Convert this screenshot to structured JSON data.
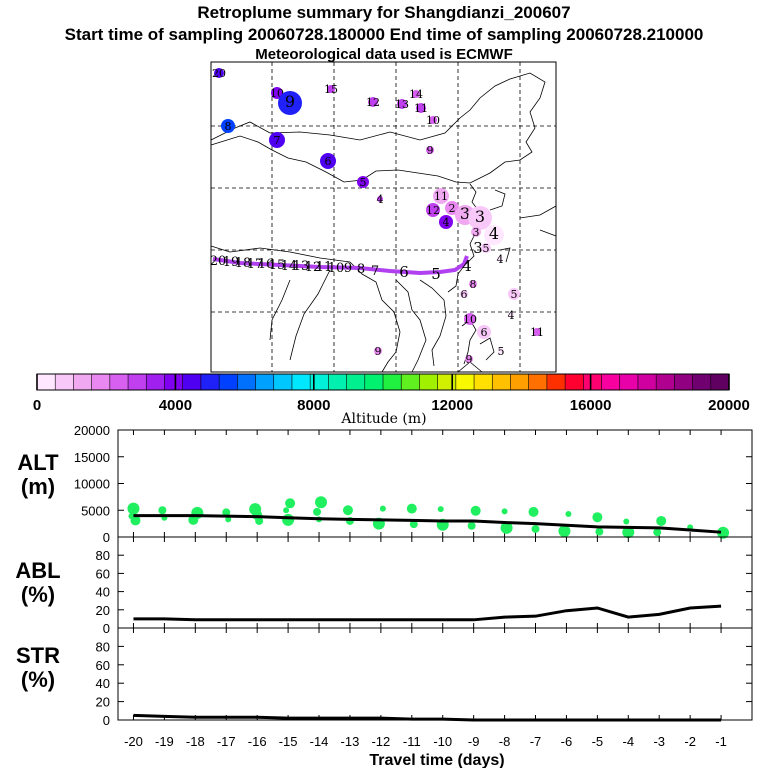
{
  "titles": {
    "line1": "Retroplume summary for Shangdianzi_200607",
    "line2": "Start time of sampling 20060728.180000     End time of sampling 20060728.210000",
    "line3": "Meteorological data used is ECMWF"
  },
  "colorbar": {
    "label": "Altitude (m)",
    "ticks": [
      "0",
      "4000",
      "8000",
      "12000",
      "16000",
      "20000"
    ],
    "min": 0,
    "max": 20000,
    "colors": [
      "#ffe8ff",
      "#f8c8f8",
      "#f0a8f0",
      "#e888f0",
      "#d860f0",
      "#c040f0",
      "#a020f0",
      "#8000f0",
      "#5000f0",
      "#2020f8",
      "#0040ff",
      "#0070ff",
      "#00a0ff",
      "#00c8ff",
      "#00e8ff",
      "#00f0d8",
      "#00f0b0",
      "#00f090",
      "#00f070",
      "#20f040",
      "#60f020",
      "#a0f000",
      "#d0f000",
      "#f8f800",
      "#ffe000",
      "#ffc000",
      "#ffa000",
      "#ff7000",
      "#ff3000",
      "#ff0030",
      "#ff0070",
      "#f800a0",
      "#e800a8",
      "#d000a0",
      "#b00090",
      "#900080",
      "#700070",
      "#600060"
    ]
  },
  "map": {
    "track_labels": [
      "20",
      "19",
      "18",
      "17",
      "16",
      "15",
      "14",
      "13",
      "12",
      "11",
      "10",
      "9",
      "8",
      "7",
      "6",
      "5",
      "4",
      "3",
      "2",
      "1"
    ],
    "markers": [
      {
        "label": "20",
        "alt": 4500
      },
      {
        "label": "10",
        "alt": 4200
      },
      {
        "label": "9",
        "alt": 4800
      },
      {
        "label": "15",
        "alt": 3000
      },
      {
        "label": "8",
        "alt": 5500
      },
      {
        "label": "12",
        "alt": 3000
      },
      {
        "label": "13",
        "alt": 2800
      },
      {
        "label": "14",
        "alt": 2500
      },
      {
        "label": "11",
        "alt": 2800
      },
      {
        "label": "7",
        "alt": 4600
      },
      {
        "label": "10",
        "alt": 2500
      },
      {
        "label": "6",
        "alt": 4500
      },
      {
        "label": "9",
        "alt": 2500
      },
      {
        "label": "5",
        "alt": 4200
      },
      {
        "label": "4",
        "alt": 3000
      },
      {
        "label": "11",
        "alt": 1500
      },
      {
        "label": "12",
        "alt": 2800
      },
      {
        "label": "2",
        "alt": 2000
      },
      {
        "label": "3",
        "alt": 1200
      },
      {
        "label": "4",
        "alt": 3800
      },
      {
        "label": "3",
        "alt": 1000
      },
      {
        "label": "4",
        "alt": 500
      },
      {
        "label": "3",
        "alt": 1200
      },
      {
        "label": "5",
        "alt": 800
      },
      {
        "label": "4",
        "alt": 300
      },
      {
        "label": "8",
        "alt": 2000
      },
      {
        "label": "6",
        "alt": 1000
      },
      {
        "label": "5",
        "alt": 700
      },
      {
        "label": "10",
        "alt": 2200
      },
      {
        "label": "4",
        "alt": 300
      },
      {
        "label": "6",
        "alt": 700
      },
      {
        "label": "11",
        "alt": 2500
      },
      {
        "label": "9",
        "alt": 1800
      },
      {
        "label": "5",
        "alt": 300
      },
      {
        "label": "9",
        "alt": 2000
      }
    ]
  },
  "chart_data": [
    {
      "type": "line",
      "title": "ALT (m)",
      "ylabel_line1": "ALT",
      "ylabel_line2": "(m)",
      "x": [
        -20,
        -19,
        -18,
        -17,
        -16,
        -15,
        -14,
        -13,
        -12,
        -11,
        -10,
        -9,
        -8,
        -7,
        -6,
        -5,
        -4,
        -3,
        -2,
        -1
      ],
      "values": [
        4000,
        4000,
        4000,
        3900,
        3800,
        3600,
        3400,
        3300,
        3200,
        3100,
        3000,
        3000,
        2700,
        2500,
        2200,
        1900,
        1800,
        1700,
        1300,
        900
      ],
      "scatter_points": [
        [
          -20,
          3900
        ],
        [
          -20,
          5300
        ],
        [
          -20,
          3100
        ],
        [
          -19,
          5000
        ],
        [
          -19,
          3600
        ],
        [
          -18,
          4500
        ],
        [
          -18,
          3200
        ],
        [
          -17,
          4600
        ],
        [
          -17,
          3300
        ],
        [
          -16,
          5200
        ],
        [
          -16,
          4100
        ],
        [
          -16,
          3000
        ],
        [
          -15,
          5000
        ],
        [
          -15,
          3200
        ],
        [
          -15,
          6300
        ],
        [
          -14,
          4700
        ],
        [
          -14,
          3300
        ],
        [
          -14,
          6500
        ],
        [
          -13,
          5000
        ],
        [
          -13,
          3000
        ],
        [
          -12,
          5300
        ],
        [
          -12,
          2500
        ],
        [
          -11,
          5300
        ],
        [
          -11,
          2400
        ],
        [
          -10,
          5200
        ],
        [
          -10,
          2300
        ],
        [
          -9,
          4900
        ],
        [
          -9,
          2100
        ],
        [
          -8,
          4800
        ],
        [
          -8,
          1700
        ],
        [
          -7,
          4700
        ],
        [
          -7,
          1500
        ],
        [
          -6,
          4300
        ],
        [
          -6,
          1100
        ],
        [
          -5,
          3700
        ],
        [
          -5,
          1000
        ],
        [
          -4,
          2900
        ],
        [
          -4,
          900
        ],
        [
          -3,
          3000
        ],
        [
          -3,
          900
        ],
        [
          -2,
          1800
        ],
        [
          -1,
          800
        ]
      ],
      "yticks": [
        "0",
        "5000",
        "10000",
        "15000",
        "20000"
      ],
      "ylim": [
        0,
        20000
      ]
    },
    {
      "type": "line",
      "title": "ABL (%)",
      "ylabel_line1": "ABL",
      "ylabel_line2": "(%)",
      "x": [
        -20,
        -19,
        -18,
        -17,
        -16,
        -15,
        -14,
        -13,
        -12,
        -11,
        -10,
        -9,
        -8,
        -7,
        -6,
        -5,
        -4,
        -3,
        -2,
        -1
      ],
      "values": [
        10,
        10,
        9,
        9,
        9,
        9,
        9,
        9,
        9,
        9,
        9,
        9,
        12,
        13,
        19,
        22,
        12,
        15,
        22,
        24
      ],
      "yticks": [
        "0",
        "20",
        "40",
        "60",
        "80"
      ],
      "ylim": [
        0,
        100
      ]
    },
    {
      "type": "line",
      "title": "STR (%)",
      "ylabel_line1": "STR",
      "ylabel_line2": "(%)",
      "x": [
        -20,
        -19,
        -18,
        -17,
        -16,
        -15,
        -14,
        -13,
        -12,
        -11,
        -10,
        -9,
        -8,
        -7,
        -6,
        -5,
        -4,
        -3,
        -2,
        -1
      ],
      "values": [
        5,
        4,
        3,
        3,
        3,
        2,
        2,
        2,
        2,
        1,
        1,
        0,
        0,
        0,
        0,
        0,
        0,
        0,
        0,
        0
      ],
      "yticks": [
        "0",
        "20",
        "40",
        "60",
        "80"
      ],
      "ylim": [
        0,
        100
      ],
      "xticks": [
        "-20",
        "-19",
        "-18",
        "-17",
        "-16",
        "-15",
        "-14",
        "-13",
        "-12",
        "-11",
        "-10",
        "-9",
        "-8",
        "-7",
        "-6",
        "-5",
        "-4",
        "-3",
        "-2",
        "-1"
      ],
      "xlabel": "Travel time (days)"
    }
  ]
}
